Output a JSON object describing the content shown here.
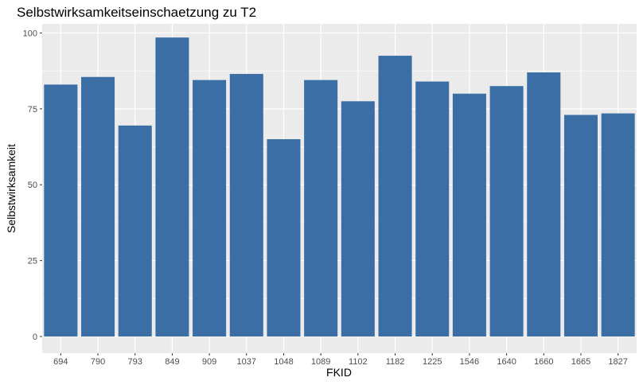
{
  "chart_data": {
    "type": "bar",
    "title": "Selbstwirksamkeitseinschaetzung zu T2",
    "xlabel": "FKID",
    "ylabel": "Selbstwirksamkeit",
    "categories": [
      "694",
      "790",
      "793",
      "849",
      "909",
      "1037",
      "1048",
      "1089",
      "1102",
      "1182",
      "1225",
      "1546",
      "1640",
      "1660",
      "1665",
      "1827"
    ],
    "values": [
      83,
      85.5,
      69.5,
      98.5,
      84.5,
      86.5,
      65,
      84.5,
      77.5,
      92.5,
      84,
      80,
      82.5,
      87,
      73,
      73.5
    ],
    "yticks": [
      0,
      25,
      50,
      75,
      100
    ],
    "ylim": [
      -5.5,
      103
    ],
    "grid": true,
    "colors": {
      "bar": "#3a6ea5",
      "panel": "#ebebeb",
      "grid": "#ffffff"
    }
  }
}
